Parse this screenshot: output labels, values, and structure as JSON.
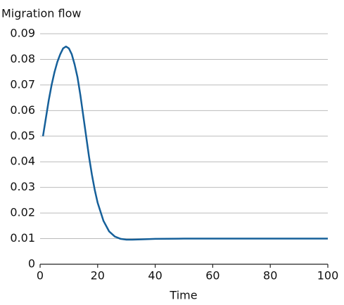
{
  "chart_data": {
    "type": "line",
    "y_label": "Migration flow",
    "x_label": "Time",
    "x": [
      1,
      2,
      3,
      4,
      5,
      6,
      7,
      8,
      9,
      10,
      11,
      12,
      13,
      14,
      15,
      16,
      17,
      18,
      19,
      20,
      22,
      24,
      26,
      28,
      30,
      32,
      35,
      40,
      50,
      60,
      70,
      80,
      90,
      100
    ],
    "series": [
      {
        "color": "#16609a",
        "values": [
          0.05,
          0.057,
          0.064,
          0.07,
          0.075,
          0.079,
          0.082,
          0.0843,
          0.085,
          0.0843,
          0.082,
          0.078,
          0.073,
          0.066,
          0.058,
          0.05,
          0.042,
          0.035,
          0.029,
          0.024,
          0.017,
          0.0128,
          0.0108,
          0.0099,
          0.0096,
          0.0096,
          0.0097,
          0.0099,
          0.01,
          0.01,
          0.01,
          0.01,
          0.01,
          0.01
        ]
      }
    ],
    "xlim": [
      0,
      100
    ],
    "xticks": [
      0,
      20,
      40,
      60,
      80,
      100
    ],
    "ylim": [
      0,
      0.09
    ],
    "yticks": [
      0,
      0.01,
      0.02,
      0.03,
      0.04,
      0.05,
      0.06,
      0.07,
      0.08,
      0.09
    ],
    "grid": true
  }
}
